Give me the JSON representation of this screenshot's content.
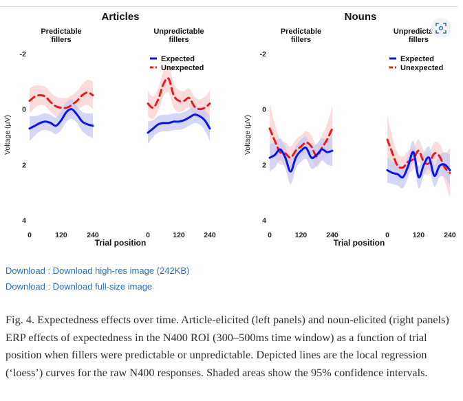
{
  "figure": {
    "groups": [
      {
        "title": "Articles"
      },
      {
        "title": "Nouns"
      }
    ],
    "expand_icon": "expand-icon"
  },
  "colors": {
    "expected": "#0a14e6",
    "unexpected": "#e51c1c",
    "expected_band": "#c5caf3",
    "unexpected_band": "#f9cfcf"
  },
  "chart_data": [
    {
      "type": "line",
      "group": "Articles",
      "title": "Predictable fillers",
      "xlabel": "",
      "ylabel": "Voltage (µV)",
      "x_ticks": [
        "0",
        "120",
        "240"
      ],
      "y_ticks": [
        "-2",
        "0",
        "2",
        "4"
      ],
      "xlim": [
        0,
        240
      ],
      "ylim": [
        4,
        -2.2
      ],
      "y_reversed": true,
      "series": [
        {
          "name": "Expected",
          "x": [
            0,
            20,
            40,
            60,
            80,
            100,
            120,
            140,
            160,
            180,
            200,
            220,
            240
          ],
          "values": [
            0.7,
            0.6,
            0.5,
            0.45,
            0.5,
            0.6,
            0.4,
            0.1,
            0.0,
            0.2,
            0.45,
            0.55,
            0.6
          ],
          "ci": [
            0.45,
            0.35,
            0.3,
            0.3,
            0.3,
            0.3,
            0.35,
            0.35,
            0.35,
            0.3,
            0.35,
            0.4,
            0.45
          ]
        },
        {
          "name": "Unexpected",
          "x": [
            0,
            20,
            40,
            60,
            80,
            100,
            120,
            140,
            160,
            180,
            200,
            220,
            240
          ],
          "values": [
            -0.3,
            -0.45,
            -0.5,
            -0.45,
            -0.25,
            -0.1,
            -0.05,
            -0.05,
            -0.15,
            -0.3,
            -0.5,
            -0.6,
            -0.5
          ],
          "ci": [
            0.45,
            0.4,
            0.35,
            0.35,
            0.35,
            0.35,
            0.35,
            0.35,
            0.35,
            0.35,
            0.4,
            0.45,
            0.5
          ]
        }
      ]
    },
    {
      "type": "line",
      "group": "Articles",
      "title": "Unpredictable fillers",
      "xlabel": "",
      "legend": {
        "position": "top-left",
        "entries": [
          "Expected",
          "Unexpected"
        ]
      },
      "x_ticks": [
        "0",
        "120",
        "240"
      ],
      "xlim": [
        0,
        240
      ],
      "ylim": [
        4,
        -2.2
      ],
      "y_reversed": true,
      "series": [
        {
          "name": "Expected",
          "x": [
            0,
            20,
            40,
            60,
            80,
            100,
            120,
            140,
            160,
            180,
            200,
            220,
            240
          ],
          "values": [
            0.85,
            0.7,
            0.55,
            0.5,
            0.5,
            0.45,
            0.45,
            0.4,
            0.3,
            0.2,
            0.25,
            0.4,
            0.7
          ],
          "ci": [
            0.4,
            0.3,
            0.3,
            0.3,
            0.3,
            0.3,
            0.3,
            0.3,
            0.3,
            0.3,
            0.3,
            0.35,
            0.45
          ]
        },
        {
          "name": "Unexpected",
          "x": [
            0,
            20,
            40,
            60,
            80,
            100,
            120,
            140,
            160,
            180,
            200,
            220,
            240
          ],
          "values": [
            -0.2,
            -0.05,
            -0.35,
            -0.9,
            -1.1,
            -0.5,
            -0.3,
            -0.3,
            -0.4,
            -0.1,
            0.0,
            -0.05,
            -0.2
          ],
          "ci": [
            0.45,
            0.4,
            0.4,
            0.45,
            0.5,
            0.45,
            0.4,
            0.35,
            0.35,
            0.35,
            0.35,
            0.4,
            0.45
          ]
        }
      ]
    },
    {
      "type": "line",
      "group": "Nouns",
      "title": "Predictable fillers",
      "xlabel": "",
      "ylabel": "Voltage (µV)",
      "x_ticks": [
        "0",
        "120",
        "240"
      ],
      "y_ticks": [
        "-2",
        "0",
        "2",
        "4"
      ],
      "xlim": [
        0,
        240
      ],
      "ylim": [
        4,
        -2.2
      ],
      "y_reversed": true,
      "series": [
        {
          "name": "Expected",
          "x": [
            0,
            20,
            40,
            60,
            80,
            100,
            120,
            140,
            160,
            180,
            200,
            220,
            240
          ],
          "values": [
            1.75,
            1.65,
            1.45,
            1.75,
            2.25,
            1.75,
            1.5,
            1.4,
            1.75,
            1.65,
            1.45,
            1.55,
            1.5
          ],
          "ci": [
            0.5,
            0.45,
            0.4,
            0.4,
            0.45,
            0.4,
            0.4,
            0.4,
            0.4,
            0.4,
            0.4,
            0.45,
            0.55
          ]
        },
        {
          "name": "Unexpected",
          "x": [
            0,
            20,
            40,
            60,
            80,
            100,
            120,
            140,
            160,
            180,
            200,
            220,
            240
          ],
          "values": [
            0.7,
            1.15,
            1.55,
            1.6,
            1.75,
            1.5,
            1.35,
            1.2,
            1.35,
            1.7,
            1.4,
            1.1,
            0.7
          ],
          "ci": [
            0.9,
            0.6,
            0.45,
            0.4,
            0.4,
            0.4,
            0.4,
            0.4,
            0.4,
            0.4,
            0.45,
            0.55,
            0.8
          ]
        }
      ]
    },
    {
      "type": "line",
      "group": "Nouns",
      "title": "Unpredictable fillers",
      "xlabel": "",
      "legend": {
        "position": "top-left",
        "entries": [
          "Expected",
          "Unexpected"
        ]
      },
      "x_ticks": [
        "0",
        "120",
        "240"
      ],
      "xlim": [
        0,
        240
      ],
      "ylim": [
        4,
        -2.2
      ],
      "y_reversed": true,
      "series": [
        {
          "name": "Expected",
          "x": [
            0,
            20,
            40,
            60,
            80,
            100,
            120,
            140,
            160,
            180,
            200,
            220,
            240
          ],
          "values": [
            2.2,
            2.3,
            2.35,
            2.45,
            2.05,
            1.55,
            2.45,
            2.0,
            1.75,
            2.4,
            2.05,
            2.0,
            2.2
          ],
          "ci": [
            0.45,
            0.4,
            0.4,
            0.4,
            0.4,
            0.4,
            0.4,
            0.4,
            0.4,
            0.4,
            0.4,
            0.45,
            0.55
          ]
        },
        {
          "name": "Unexpected",
          "x": [
            0,
            20,
            40,
            60,
            80,
            100,
            120,
            140,
            160,
            180,
            200,
            220,
            240
          ],
          "values": [
            1.1,
            1.6,
            2.05,
            2.1,
            1.9,
            1.8,
            1.5,
            1.9,
            1.95,
            1.6,
            1.7,
            2.1,
            2.3
          ],
          "ci": [
            0.9,
            0.55,
            0.45,
            0.4,
            0.4,
            0.4,
            0.4,
            0.4,
            0.4,
            0.4,
            0.45,
            0.5,
            0.9
          ]
        }
      ]
    }
  ],
  "shared_xlabel": "Trial position",
  "links": [
    {
      "label": "Download : Download high-res image (242KB)"
    },
    {
      "label": "Download : Download full-size image"
    }
  ],
  "caption": "Fig. 4. Expectedness effects over time. Article-elicited (left panels) and noun-elicited (right panels) ERP effects of expectedness in the N400 ROI (300–500ms time window) as a function of trial position when fillers were predictable or unpredictable. Depicted lines are the local regression (‘loess’) curves for the raw N400 responses. Shaded areas show the 95% confidence intervals."
}
